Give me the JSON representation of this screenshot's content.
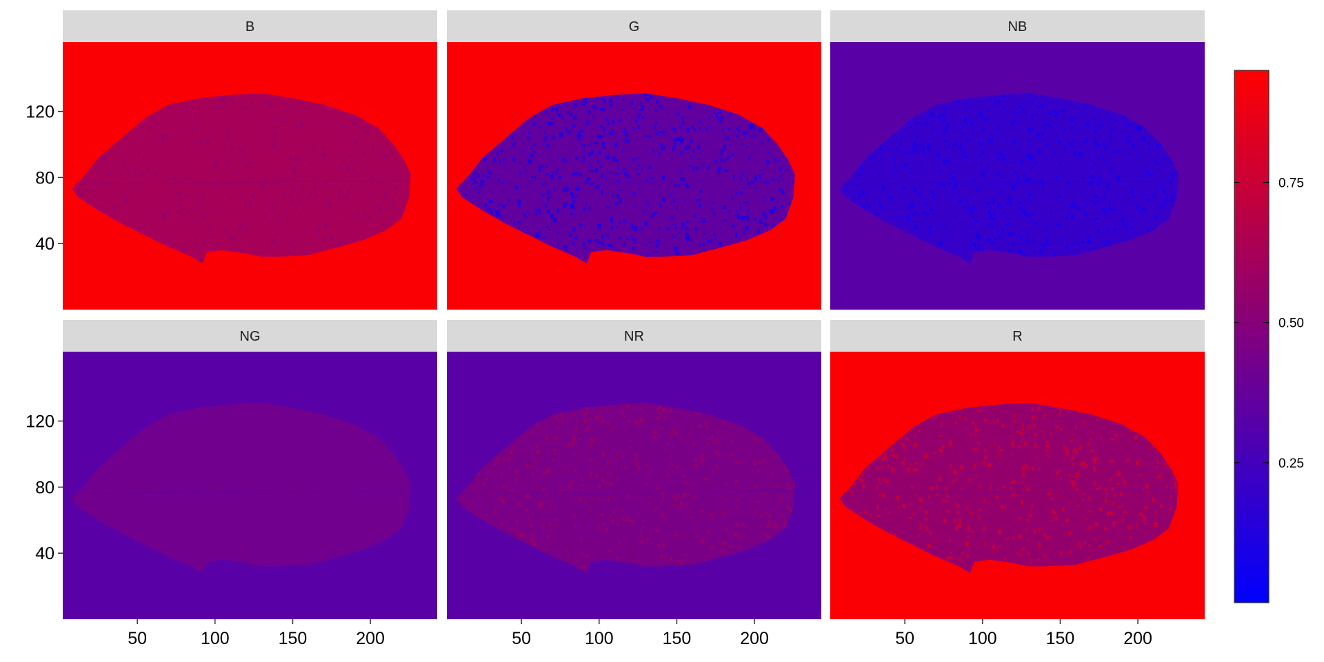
{
  "chart_data": {
    "type": "heatmap",
    "title": "",
    "xlabel": "",
    "ylabel": "",
    "layout": {
      "rows": 2,
      "cols": 3
    },
    "xlim": [
      2,
      243
    ],
    "ylim": [
      0,
      162
    ],
    "x_ticks": [
      50,
      100,
      150,
      200
    ],
    "y_ticks": [
      40,
      80,
      120
    ],
    "colorbar": {
      "range": [
        0,
        0.95
      ],
      "ticks": [
        0.25,
        0.5,
        0.75
      ],
      "tick_labels": [
        "0.25",
        "0.50",
        "0.75"
      ],
      "colors": [
        "#0000ff",
        "#ff0000"
      ]
    },
    "leaf_shape": {
      "x": [
        8,
        15,
        25,
        40,
        55,
        70,
        90,
        110,
        130,
        150,
        170,
        190,
        205,
        215,
        222,
        226,
        225,
        220,
        210,
        195,
        180,
        160,
        140,
        130,
        120,
        105,
        95,
        92,
        85,
        70,
        55,
        40,
        25,
        12,
        8
      ],
      "y": [
        73,
        80,
        92,
        104,
        116,
        124,
        128,
        130,
        131,
        128,
        124,
        118,
        110,
        100,
        90,
        82,
        68,
        55,
        48,
        42,
        38,
        33,
        32,
        32,
        34,
        36,
        35,
        28,
        32,
        38,
        45,
        52,
        60,
        68,
        73
      ]
    },
    "panels": [
      {
        "label": "B",
        "background": 0.93,
        "leaf": 0.62,
        "speckle": 0.55,
        "speckle_amount": 0.25
      },
      {
        "label": "G",
        "background": 0.93,
        "leaf": 0.36,
        "speckle": 0.1,
        "speckle_amount": 0.45
      },
      {
        "label": "NB",
        "background": 0.33,
        "leaf": 0.2,
        "speckle": 0.08,
        "speckle_amount": 0.4
      },
      {
        "label": "NG",
        "background": 0.33,
        "leaf": 0.42,
        "speckle": 0.45,
        "speckle_amount": 0.1
      },
      {
        "label": "NR",
        "background": 0.33,
        "leaf": 0.45,
        "speckle": 0.56,
        "speckle_amount": 0.35
      },
      {
        "label": "R",
        "background": 0.93,
        "leaf": 0.55,
        "speckle": 0.74,
        "speckle_amount": 0.35
      }
    ]
  }
}
